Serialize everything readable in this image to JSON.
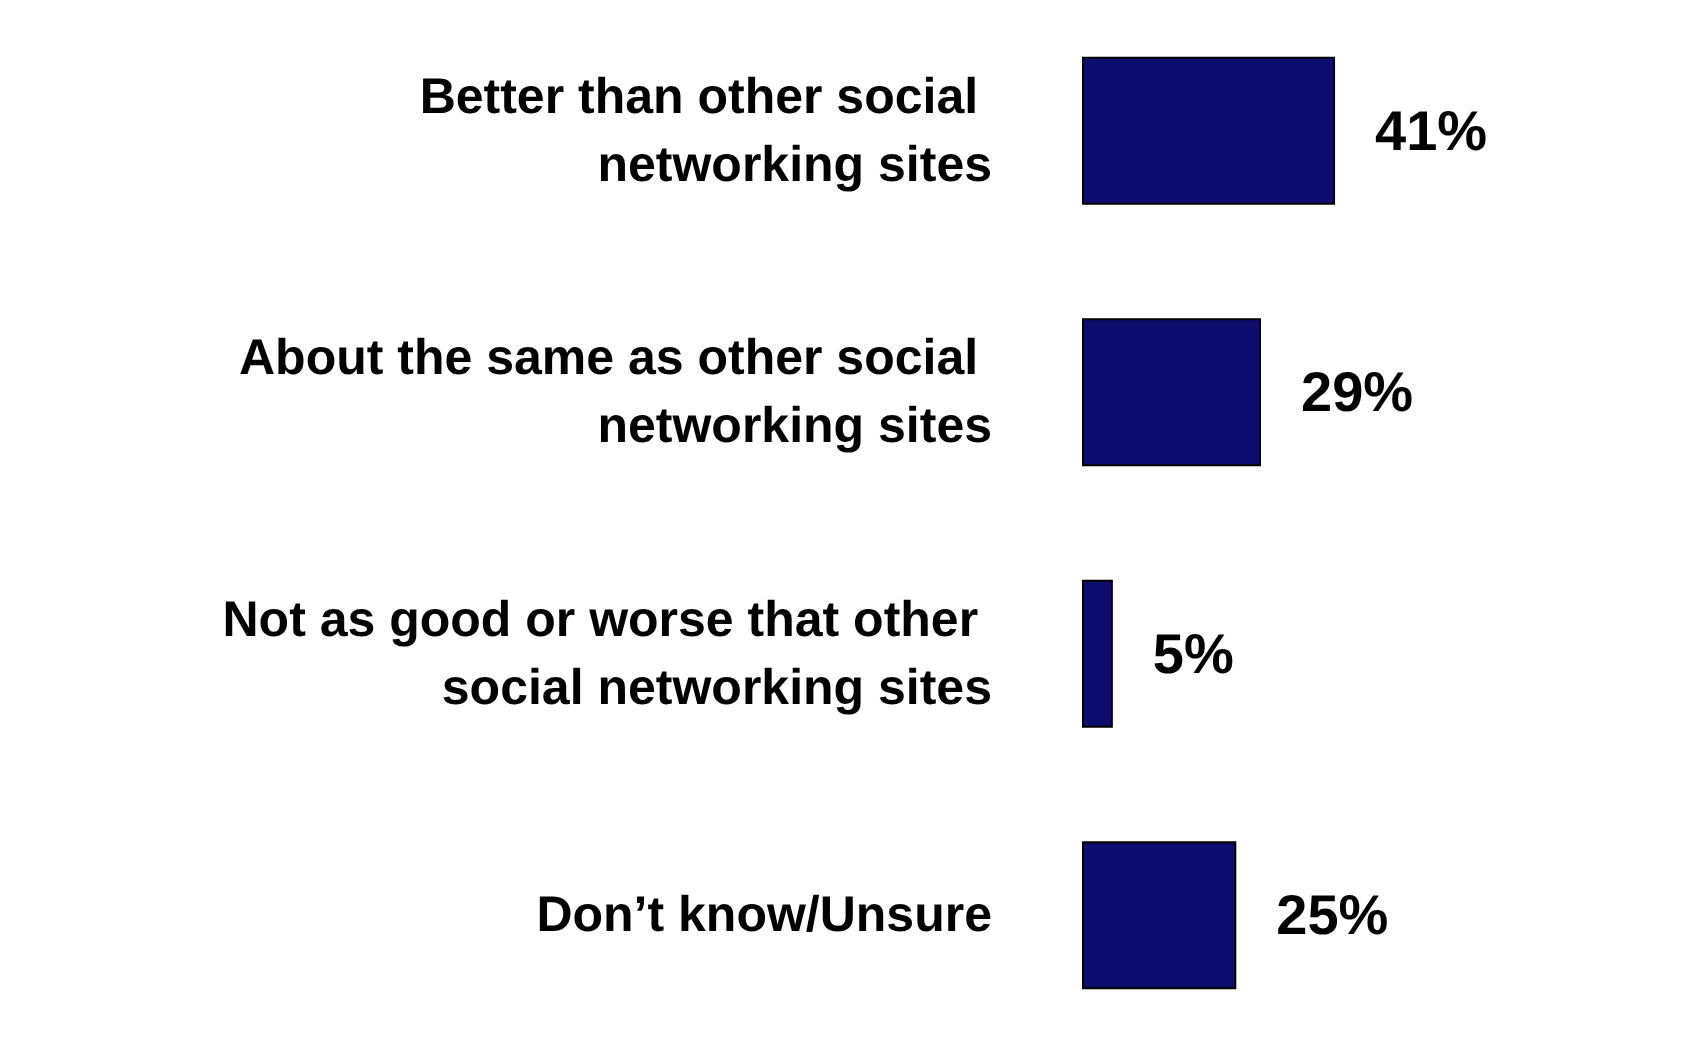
{
  "chart_data": {
    "type": "bar",
    "orientation": "horizontal",
    "categories": [
      "Better than other social networking sites",
      "About the same as other social networking sites",
      "Not as good or worse that other social networking sites",
      "Don’t know/Unsure"
    ],
    "values": [
      41,
      29,
      5,
      25
    ],
    "value_labels": [
      "41%",
      "29%",
      "5%",
      "25%"
    ],
    "color": "#0d0d6e"
  }
}
